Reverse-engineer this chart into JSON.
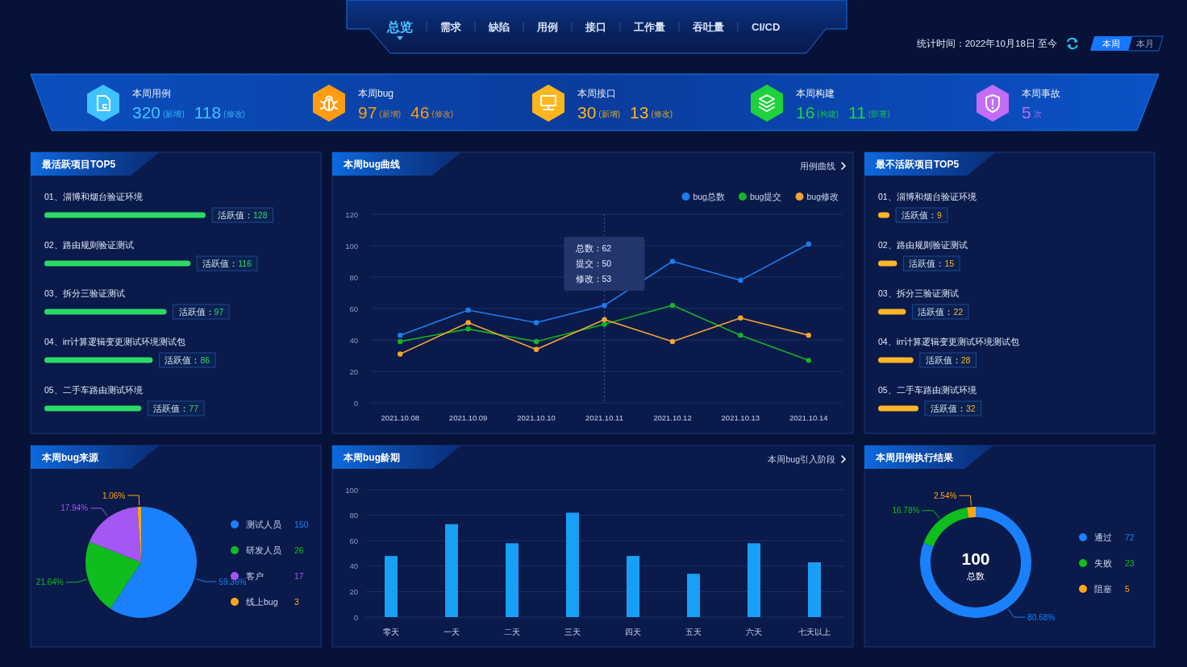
{
  "chart_data": [
    {
      "type": "other",
      "annotations": [
        "总览",
        "需求",
        "缺陷",
        "用例",
        "接口",
        "工作量",
        "吞吐量",
        "CI/CD",
        "统计时间：2022年10月18日 至今",
        "本周",
        "本月"
      ]
    },
    {
      "type": "other",
      "title": "本周用例",
      "color": "#3ec3ff",
      "annotations": [
        "320",
        "(新增)",
        "118",
        "(修改)"
      ]
    },
    {
      "type": "other",
      "title": "本周bug",
      "color": "#ff9c14",
      "annotations": [
        "97",
        "(新增)",
        "46",
        "(修改)"
      ]
    },
    {
      "type": "other",
      "title": "本周接口",
      "color": "#ffb61e",
      "annotations": [
        "30",
        "(新增)",
        "13",
        "(修改)"
      ]
    },
    {
      "type": "other",
      "title": "本周构建",
      "color": "#1ed23c",
      "annotations": [
        "16",
        "(构建)",
        "11",
        "(部署)"
      ]
    },
    {
      "type": "other",
      "title": "本周事故",
      "color": "#c46cf6",
      "annotations": [
        "5",
        "次"
      ]
    },
    {
      "type": "bar",
      "orientation": "horizontal",
      "title": "最活跃项目TOP5",
      "categories": [
        "01、淄博和烟台验证环境",
        "02、路由规则验证测试",
        "03、拆分三验证测试",
        "04、irr计算逻辑变更测试环境测试包",
        "05、二手车路由测试环境"
      ],
      "values": [
        128,
        116,
        97,
        86,
        77
      ],
      "color": "#2bda64",
      "value_labels": [
        "活跃值：128",
        "活跃值：116",
        "活跃值：97",
        "活跃值：86",
        "活跃值：77"
      ]
    },
    {
      "type": "line",
      "title": "本周bug曲线",
      "categories": [
        "2021.10.08",
        "2021.10.09",
        "2021.10.10",
        "2021.10.11",
        "2021.10.12",
        "2021.10.13",
        "2021.10.14"
      ],
      "series": [
        {
          "name": "bug总数",
          "color": "#1e7cf0",
          "values": [
            43,
            59,
            51,
            62,
            90,
            78,
            101
          ]
        },
        {
          "name": "bug提交",
          "color": "#14b524",
          "values": [
            39,
            47,
            39,
            50,
            62,
            43,
            27
          ]
        },
        {
          "name": "bug修改",
          "color": "#f2a431",
          "values": [
            31,
            51,
            34,
            53,
            39,
            54,
            43
          ]
        }
      ],
      "ylim": [
        0,
        120
      ],
      "yticks": [
        0,
        20,
        40,
        60,
        80,
        100,
        120
      ],
      "grid": "y",
      "legend": "top right",
      "marker": "circle",
      "ref_lines": [
        {
          "axis": "x",
          "value": "2021.10.11",
          "line_style": "dotted"
        }
      ],
      "annotations": [
        "用例曲线",
        "总数：62",
        "提交：50",
        "修改：53"
      ]
    },
    {
      "type": "bar",
      "orientation": "horizontal",
      "title": "最不活跃项目TOP5",
      "categories": [
        "01、淄博和烟台验证环境",
        "02、路由规则验证测试",
        "03、拆分三验证测试",
        "04、irr计算逻辑变更测试环境测试包",
        "05、二手车路由测试环境"
      ],
      "values": [
        9,
        15,
        22,
        28,
        32
      ],
      "color": "#ffb42a",
      "value_labels": [
        "活跃值：9",
        "活跃值：15",
        "活跃值：22",
        "活跃值：28",
        "活跃值：32"
      ]
    },
    {
      "type": "pie",
      "title": "本周bug来源",
      "categories": [
        "测试人员",
        "研发人员",
        "客户",
        "线上bug"
      ],
      "values": [
        59.36,
        21.64,
        17.94,
        1.06
      ],
      "colors": [
        "#1b80fb",
        "#0fbd1e",
        "#a457f2",
        "#ffa514"
      ],
      "value_labels": [
        "59.36%",
        "21.64%",
        "17.94%",
        "1.06%"
      ],
      "legend": "right",
      "annotations": [
        "150",
        "26",
        "17",
        "3"
      ]
    },
    {
      "type": "bar",
      "title": "本周bug龄期",
      "categories": [
        "零天",
        "一天",
        "二天",
        "三天",
        "四天",
        "五天",
        "六天",
        "七天以上"
      ],
      "values": [
        48,
        73,
        58,
        82,
        48,
        34,
        58,
        43
      ],
      "color": "#17a0f5",
      "ylim": [
        0,
        100
      ],
      "yticks": [
        0,
        20,
        40,
        60,
        80,
        100
      ],
      "grid": "y",
      "annotations": [
        "本周bug引入阶段"
      ]
    },
    {
      "type": "donut",
      "title": "本周用例执行结果",
      "categories": [
        "通过",
        "失败",
        "阻塞"
      ],
      "values": [
        80.68,
        16.78,
        2.54
      ],
      "colors": [
        "#1b80fb",
        "#0fbd1e",
        "#ffa514"
      ],
      "value_labels": [
        "80.68%",
        "16.78%",
        "2.54%"
      ],
      "legend": "right",
      "annotations": [
        "100",
        "总数",
        "72",
        "23",
        "5"
      ]
    }
  ]
}
